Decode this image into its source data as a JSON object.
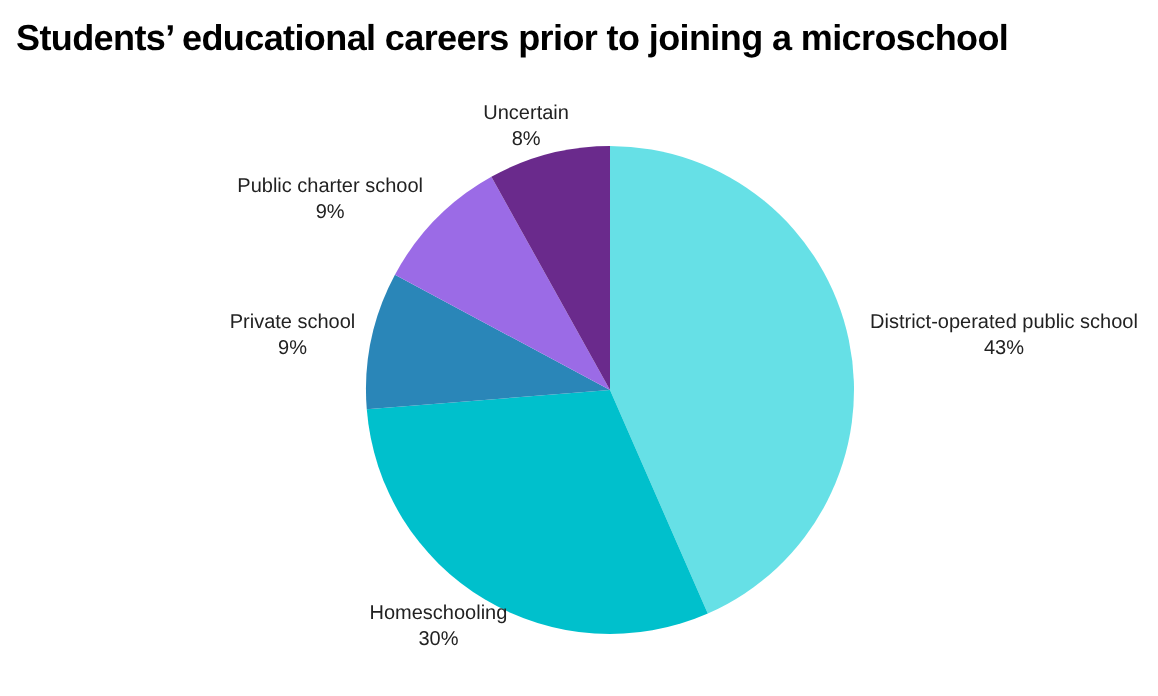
{
  "chart_data": {
    "type": "pie",
    "title": "Students’ educational careers prior to joining a microschool",
    "categories": [
      "District-operated public school",
      "Homeschooling",
      "Private school",
      "Public charter school",
      "Uncertain"
    ],
    "values": [
      43,
      30,
      9,
      9,
      8
    ],
    "value_labels": [
      "43%",
      "30%",
      "9%",
      "9%",
      "8%"
    ],
    "colors": [
      "#66e0e6",
      "#00c0cc",
      "#2a86b8",
      "#9b6be6",
      "#6a2a8c"
    ],
    "legend": false
  }
}
